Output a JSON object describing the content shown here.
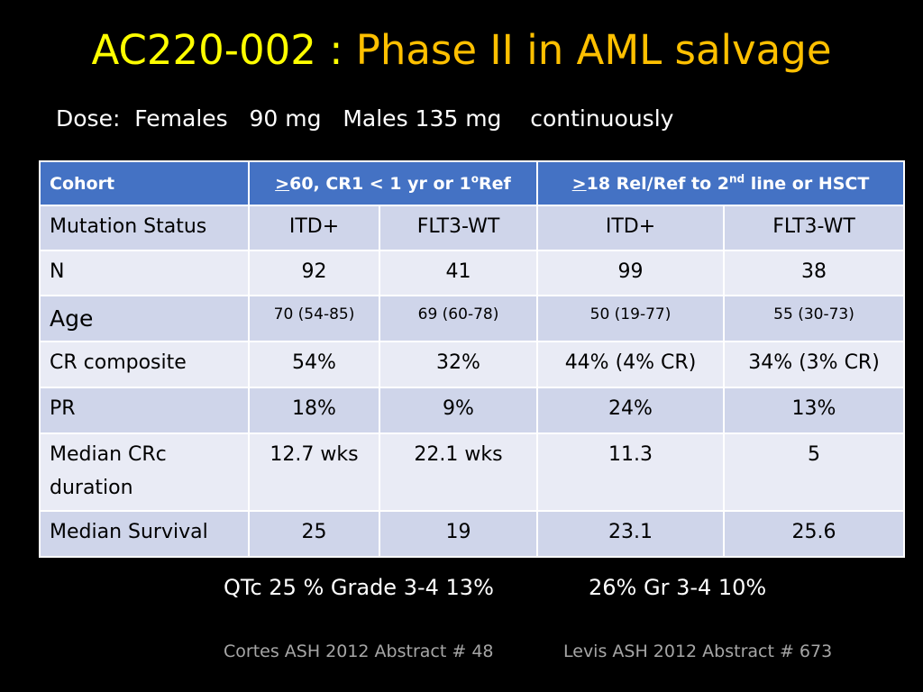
{
  "slide": {
    "title_main": "AC220-002",
    "title_sep": " : ",
    "title_sub": "Phase II in AML salvage",
    "dose": "Dose:  Females   90 mg   Males 135 mg    continuously"
  },
  "colors": {
    "background": "#000000",
    "title_main": "#ffff00",
    "title_sub": "#ffc000",
    "table_header": "#4472c4",
    "row_dark": "#cfd5ea",
    "row_light": "#e9ebf5",
    "footnote": "#a6a6a6"
  },
  "table": {
    "header": {
      "cohort": "Cohort",
      "group1_prefix": ">",
      "group1_rest": "60,  CR1 < 1 yr or 1",
      "group1_sup": "o",
      "group1_suffix": "Ref",
      "group2_prefix": ">",
      "group2_rest": "18 Rel/Ref to 2",
      "group2_sup": "nd",
      "group2_suffix": " line or HSCT"
    },
    "rows": [
      {
        "label": "Mutation Status",
        "c1": "ITD+",
        "c2": "FLT3-WT",
        "c3": "ITD+",
        "c4": "FLT3-WT"
      },
      {
        "label": "N",
        "c1": "92",
        "c2": "41",
        "c3": "99",
        "c4": "38"
      },
      {
        "label": "Age",
        "c1": "70  (54-85)",
        "c2": "69 (60-78)",
        "c3": "50 (19-77)",
        "c4": "55 (30-73)"
      },
      {
        "label": "CR composite",
        "c1": "54%",
        "c2": "32%",
        "c3": "44%  (4% CR)",
        "c4": "34% (3% CR)"
      },
      {
        "label": "PR",
        "c1": "18%",
        "c2": "9%",
        "c3": "24%",
        "c4": "13%"
      },
      {
        "label": "Median CRc duration",
        "c1": "12.7 wks",
        "c2": "22.1 wks",
        "c3": "11.3",
        "c4": "5"
      },
      {
        "label": "Median Survival",
        "c1": "25",
        "c2": "19",
        "c3": "23.1",
        "c4": "25.6"
      }
    ]
  },
  "notes": {
    "qtc_left": "QTc 25 % Grade 3-4 13%",
    "qtc_right": "26% Gr 3-4 10%"
  },
  "references": {
    "left": "Cortes ASH 2012 Abstract # 48",
    "right": "Levis ASH 2012 Abstract # 673"
  }
}
